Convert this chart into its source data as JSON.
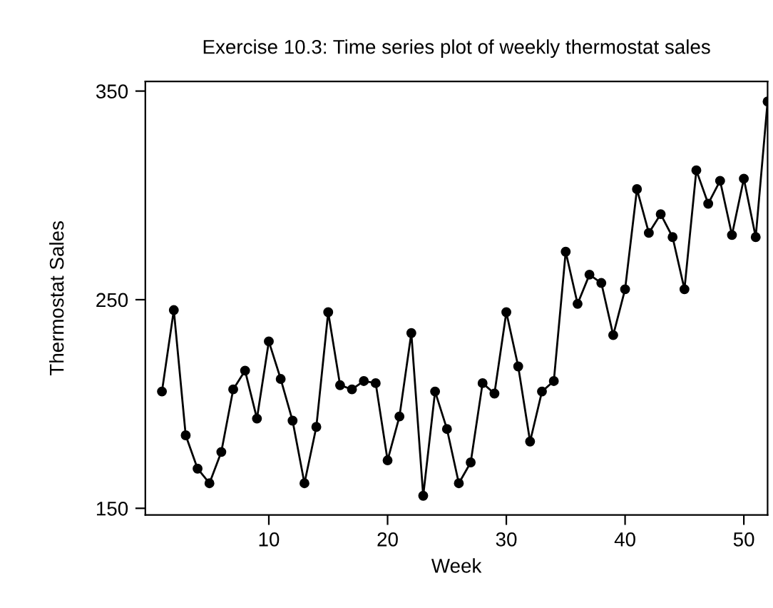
{
  "chart_data": {
    "type": "line",
    "title": "Exercise 10.3: Time series plot of weekly thermostat sales",
    "xlabel": "Week",
    "ylabel": "Thermostat Sales",
    "x": [
      1,
      2,
      3,
      4,
      5,
      6,
      7,
      8,
      9,
      10,
      11,
      12,
      13,
      14,
      15,
      16,
      17,
      18,
      19,
      20,
      21,
      22,
      23,
      24,
      25,
      26,
      27,
      28,
      29,
      30,
      31,
      32,
      33,
      34,
      35,
      36,
      37,
      38,
      39,
      40,
      41,
      42,
      43,
      44,
      45,
      46,
      47,
      48,
      49,
      50,
      51,
      52
    ],
    "series": [
      {
        "color": "#000000",
        "values": [
          206,
          245,
          185,
          169,
          162,
          177,
          207,
          216,
          193,
          230,
          212,
          192,
          162,
          189,
          244,
          209,
          207,
          211,
          210,
          173,
          194,
          234,
          156,
          206,
          188,
          162,
          172,
          210,
          205,
          244,
          218,
          182,
          206,
          211,
          273,
          248,
          262,
          258,
          233,
          255,
          303,
          282,
          291,
          280,
          255,
          312,
          296,
          307,
          281,
          308,
          280,
          345
        ]
      }
    ],
    "xlim": [
      -0.4,
      52
    ],
    "ylim": [
      146.8,
      354.6
    ],
    "xticks": [
      10,
      20,
      30,
      40,
      50
    ],
    "yticks": [
      150,
      250,
      350
    ],
    "grid": false,
    "legend": false,
    "marker": "circle",
    "line_style": "solid"
  }
}
